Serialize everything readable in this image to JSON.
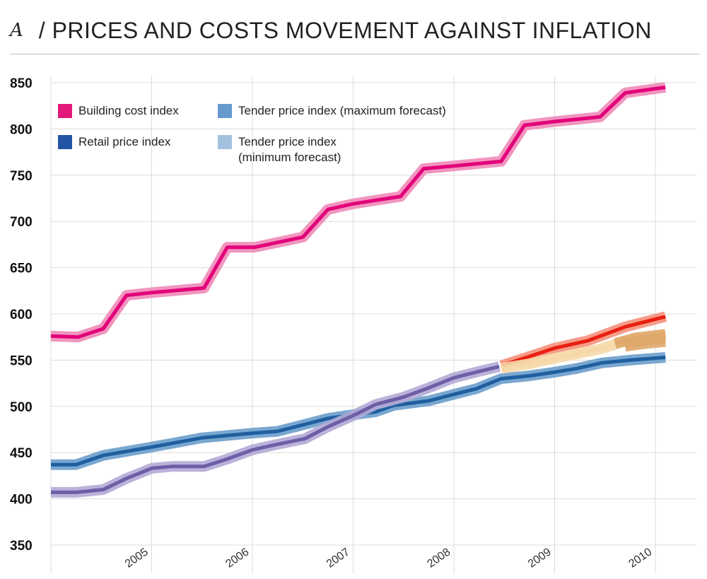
{
  "header": {
    "letter": "A",
    "title": "/ PRICES AND COSTS MOVEMENT AGAINST INFLATION"
  },
  "legend": [
    {
      "label": "Building cost index",
      "color": "#e2187a"
    },
    {
      "label": "Tender price index (maximum forecast)",
      "color": "#6699cc"
    },
    {
      "label": "Retail price index",
      "color": "#2255a4"
    },
    {
      "label": "Tender price index\n(minimum forecast)",
      "color": "#a3c2e0"
    }
  ],
  "chart_data": {
    "type": "line",
    "title": "",
    "xlabel": "",
    "ylabel": "",
    "ylim": [
      350,
      850
    ],
    "xlim": [
      2004,
      2010.2
    ],
    "y_ticks": [
      850,
      800,
      750,
      700,
      650,
      600,
      550,
      500,
      450,
      400,
      350
    ],
    "x_ticks": [
      2005,
      2006,
      2007,
      2008,
      2009,
      2010
    ],
    "grid": true,
    "legend_position": "top-left",
    "series": [
      {
        "name": "Building cost index",
        "color": "#e2007a",
        "halo": "#f08ab8",
        "points": [
          [
            2004.0,
            576
          ],
          [
            2004.27,
            575
          ],
          [
            2004.52,
            584
          ],
          [
            2004.75,
            620
          ],
          [
            2005.0,
            623
          ],
          [
            2005.52,
            628
          ],
          [
            2005.75,
            672
          ],
          [
            2006.02,
            672
          ],
          [
            2006.5,
            683
          ],
          [
            2006.75,
            713
          ],
          [
            2007.0,
            719
          ],
          [
            2007.47,
            727
          ],
          [
            2007.7,
            757
          ],
          [
            2008.0,
            760
          ],
          [
            2008.47,
            765
          ],
          [
            2008.7,
            804
          ],
          [
            2009.0,
            808
          ],
          [
            2009.45,
            813
          ],
          [
            2009.7,
            839
          ],
          [
            2010.1,
            845
          ]
        ]
      },
      {
        "name": "Retail price index",
        "color": "#1f5fa0",
        "halo": "#6a9dcb",
        "points": [
          [
            2004.0,
            437
          ],
          [
            2004.25,
            437
          ],
          [
            2004.52,
            447
          ],
          [
            2005.0,
            456
          ],
          [
            2005.5,
            466
          ],
          [
            2006.0,
            471
          ],
          [
            2006.25,
            473
          ],
          [
            2006.5,
            480
          ],
          [
            2006.75,
            487
          ],
          [
            2007.0,
            491
          ],
          [
            2007.22,
            494
          ],
          [
            2007.4,
            501
          ],
          [
            2007.75,
            506
          ],
          [
            2008.0,
            513
          ],
          [
            2008.22,
            519
          ],
          [
            2008.47,
            530
          ],
          [
            2008.75,
            533
          ],
          [
            2009.0,
            537
          ],
          [
            2009.22,
            541
          ],
          [
            2009.47,
            547
          ],
          [
            2009.75,
            550
          ],
          [
            2010.1,
            553
          ]
        ]
      },
      {
        "name": "",
        "color": "#6e5ea6",
        "halo": "#b3aad6",
        "points": [
          [
            2004.0,
            407
          ],
          [
            2004.25,
            407
          ],
          [
            2004.52,
            410
          ],
          [
            2004.75,
            422
          ],
          [
            2005.0,
            433
          ],
          [
            2005.2,
            435
          ],
          [
            2005.52,
            435
          ],
          [
            2005.75,
            443
          ],
          [
            2006.0,
            453
          ],
          [
            2006.25,
            459
          ],
          [
            2006.52,
            465
          ],
          [
            2006.75,
            478
          ],
          [
            2007.0,
            490
          ],
          [
            2007.22,
            502
          ],
          [
            2007.5,
            510
          ],
          [
            2007.75,
            520
          ],
          [
            2008.0,
            531
          ],
          [
            2008.22,
            537
          ],
          [
            2008.45,
            543
          ]
        ]
      },
      {
        "name": "",
        "color": "#e81f10",
        "halo": "#f5907a",
        "points": [
          [
            2008.47,
            544
          ],
          [
            2008.75,
            554
          ],
          [
            2009.0,
            563
          ],
          [
            2009.33,
            571
          ],
          [
            2009.7,
            586
          ],
          [
            2010.1,
            597
          ]
        ]
      },
      {
        "name": "",
        "color": "#f6d8a8",
        "halo": "#f6d8a8",
        "points": [
          [
            2008.47,
            541
          ],
          [
            2008.75,
            546
          ],
          [
            2009.0,
            552
          ],
          [
            2009.45,
            562
          ],
          [
            2009.75,
            572
          ],
          [
            2010.1,
            576
          ]
        ]
      },
      {
        "name": "",
        "color": "#dfa86a",
        "halo": "#dfa86a",
        "points": [
          [
            2009.6,
            568
          ],
          [
            2009.8,
            574
          ],
          [
            2010.1,
            578
          ]
        ]
      },
      {
        "name": "",
        "color": "#dfa86a",
        "halo": "#dfa86a",
        "points": [
          [
            2009.7,
            565
          ],
          [
            2009.9,
            568
          ],
          [
            2010.1,
            570
          ]
        ]
      }
    ]
  }
}
